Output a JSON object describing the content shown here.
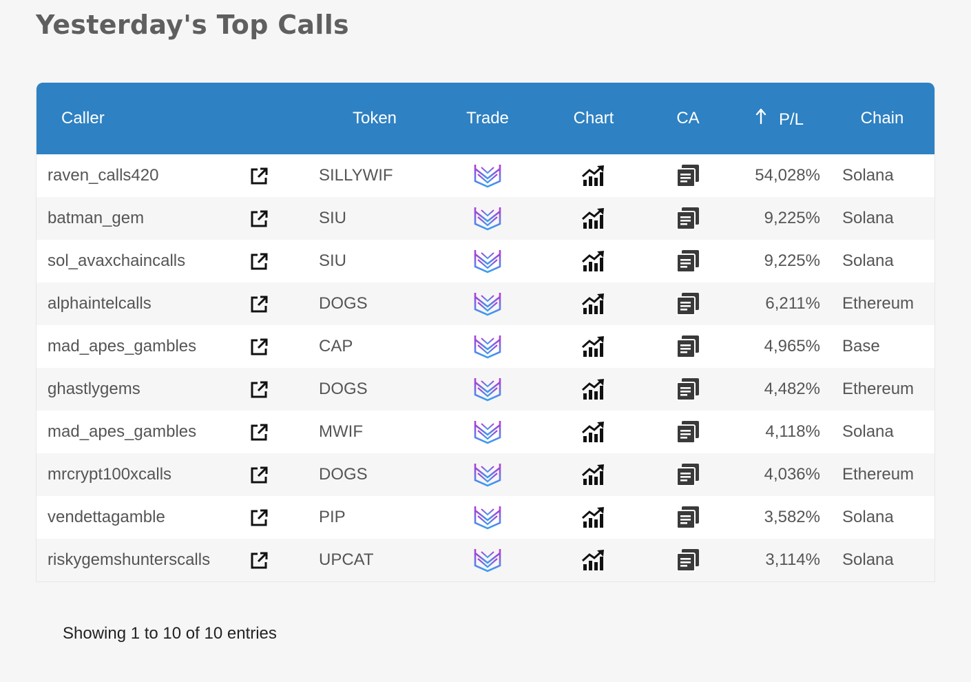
{
  "title": "Yesterday's Top Calls",
  "table": {
    "headers": {
      "caller": "Caller",
      "token": "Token",
      "trade": "Trade",
      "chart": "Chart",
      "ca": "CA",
      "pl": "P/L",
      "chain": "Chain"
    },
    "sort": {
      "column": "pl",
      "direction": "descending",
      "icon": "arrow-up-icon"
    },
    "rows": [
      {
        "caller": "raven_calls420",
        "token": "SILLYWIF",
        "pl": "54,028%",
        "chain": "Solana"
      },
      {
        "caller": "batman_gem",
        "token": "SIU",
        "pl": "9,225%",
        "chain": "Solana"
      },
      {
        "caller": "sol_avaxchaincalls",
        "token": "SIU",
        "pl": "9,225%",
        "chain": "Solana"
      },
      {
        "caller": "alphaintelcalls",
        "token": "DOGS",
        "pl": "6,211%",
        "chain": "Ethereum"
      },
      {
        "caller": "mad_apes_gambles",
        "token": "CAP",
        "pl": "4,965%",
        "chain": "Base"
      },
      {
        "caller": "ghastlygems",
        "token": "DOGS",
        "pl": "4,482%",
        "chain": "Ethereum"
      },
      {
        "caller": "mad_apes_gambles",
        "token": "MWIF",
        "pl": "4,118%",
        "chain": "Solana"
      },
      {
        "caller": "mrcrypt100xcalls",
        "token": "DOGS",
        "pl": "4,036%",
        "chain": "Ethereum"
      },
      {
        "caller": "vendettagamble",
        "token": "PIP",
        "pl": "3,582%",
        "chain": "Solana"
      },
      {
        "caller": "riskygemshunterscalls",
        "token": "UPCAT",
        "pl": "3,114%",
        "chain": "Solana"
      }
    ],
    "row_icons": {
      "link": "external-link-icon",
      "trade": "trade-logo-icon",
      "chart": "chart-trend-icon",
      "ca": "copy-icon"
    }
  },
  "footer": {
    "info": "Showing 1 to 10 of 10 entries"
  },
  "colors": {
    "header_bg": "#2e81c2",
    "page_bg": "#f6f6f6",
    "trade_gradient_start": "#b03ad6",
    "trade_gradient_end": "#3a9ef0"
  }
}
